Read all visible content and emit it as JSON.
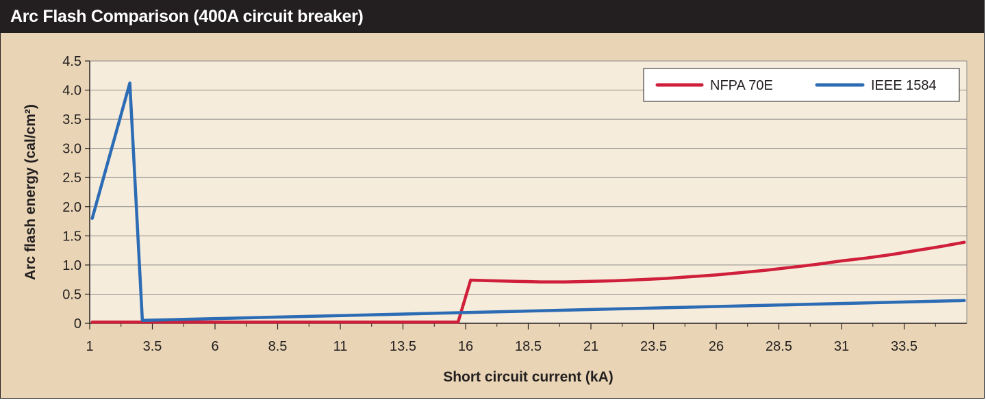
{
  "title": "Arc Flash Comparison (400A circuit breaker)",
  "colors": {
    "background": "#e9d5b5",
    "plot_background": "#f6ecdc",
    "title_bar": "#231f20",
    "nfpa": "#cf1f3a",
    "ieee": "#2c6cb4",
    "grid": "#8c8a86"
  },
  "chart_data": {
    "type": "line",
    "title": "Arc Flash Comparison (400A circuit breaker)",
    "xlabel": "Short circuit current (kA)",
    "ylabel": "Arc flash energy (cal/cm²)",
    "xlim": [
      1,
      36
    ],
    "ylim": [
      0,
      4.5
    ],
    "xticks": [
      1,
      3.5,
      6,
      8.5,
      11,
      13.5,
      16,
      18.5,
      21,
      23.5,
      26,
      28.5,
      31,
      33.5
    ],
    "xtick_labels": [
      "1",
      "3.5",
      "6",
      "8.5",
      "11",
      "13.5",
      "16",
      "18.5",
      "21",
      "23.5",
      "26",
      "28.5",
      "31",
      "33.5"
    ],
    "yticks": [
      0,
      0.5,
      1.0,
      1.5,
      2.0,
      2.5,
      3.0,
      3.5,
      4.0,
      4.5
    ],
    "ytick_labels": [
      "0",
      "0.5",
      "1.0",
      "1.5",
      "2.0",
      "2.5",
      "3.0",
      "3.5",
      "4.0",
      "4.5"
    ],
    "grid": "horizontal",
    "legend_position": "top-right",
    "series": [
      {
        "name": "NFPA 70E",
        "color": "#cf1f3a",
        "x": [
          1.1,
          15.7,
          16.2,
          17,
          18,
          19,
          20,
          21,
          22,
          23,
          24,
          25,
          26,
          27,
          28,
          29,
          30,
          31,
          32,
          33,
          34,
          35,
          35.9
        ],
        "y": [
          0.02,
          0.02,
          0.74,
          0.73,
          0.72,
          0.71,
          0.71,
          0.72,
          0.73,
          0.75,
          0.77,
          0.8,
          0.83,
          0.87,
          0.91,
          0.96,
          1.01,
          1.07,
          1.12,
          1.18,
          1.25,
          1.32,
          1.39
        ]
      },
      {
        "name": "IEEE 1584",
        "color": "#2c6cb4",
        "x": [
          1.1,
          2.6,
          3.1,
          35.9
        ],
        "y": [
          1.8,
          4.12,
          0.05,
          0.39
        ]
      }
    ]
  }
}
